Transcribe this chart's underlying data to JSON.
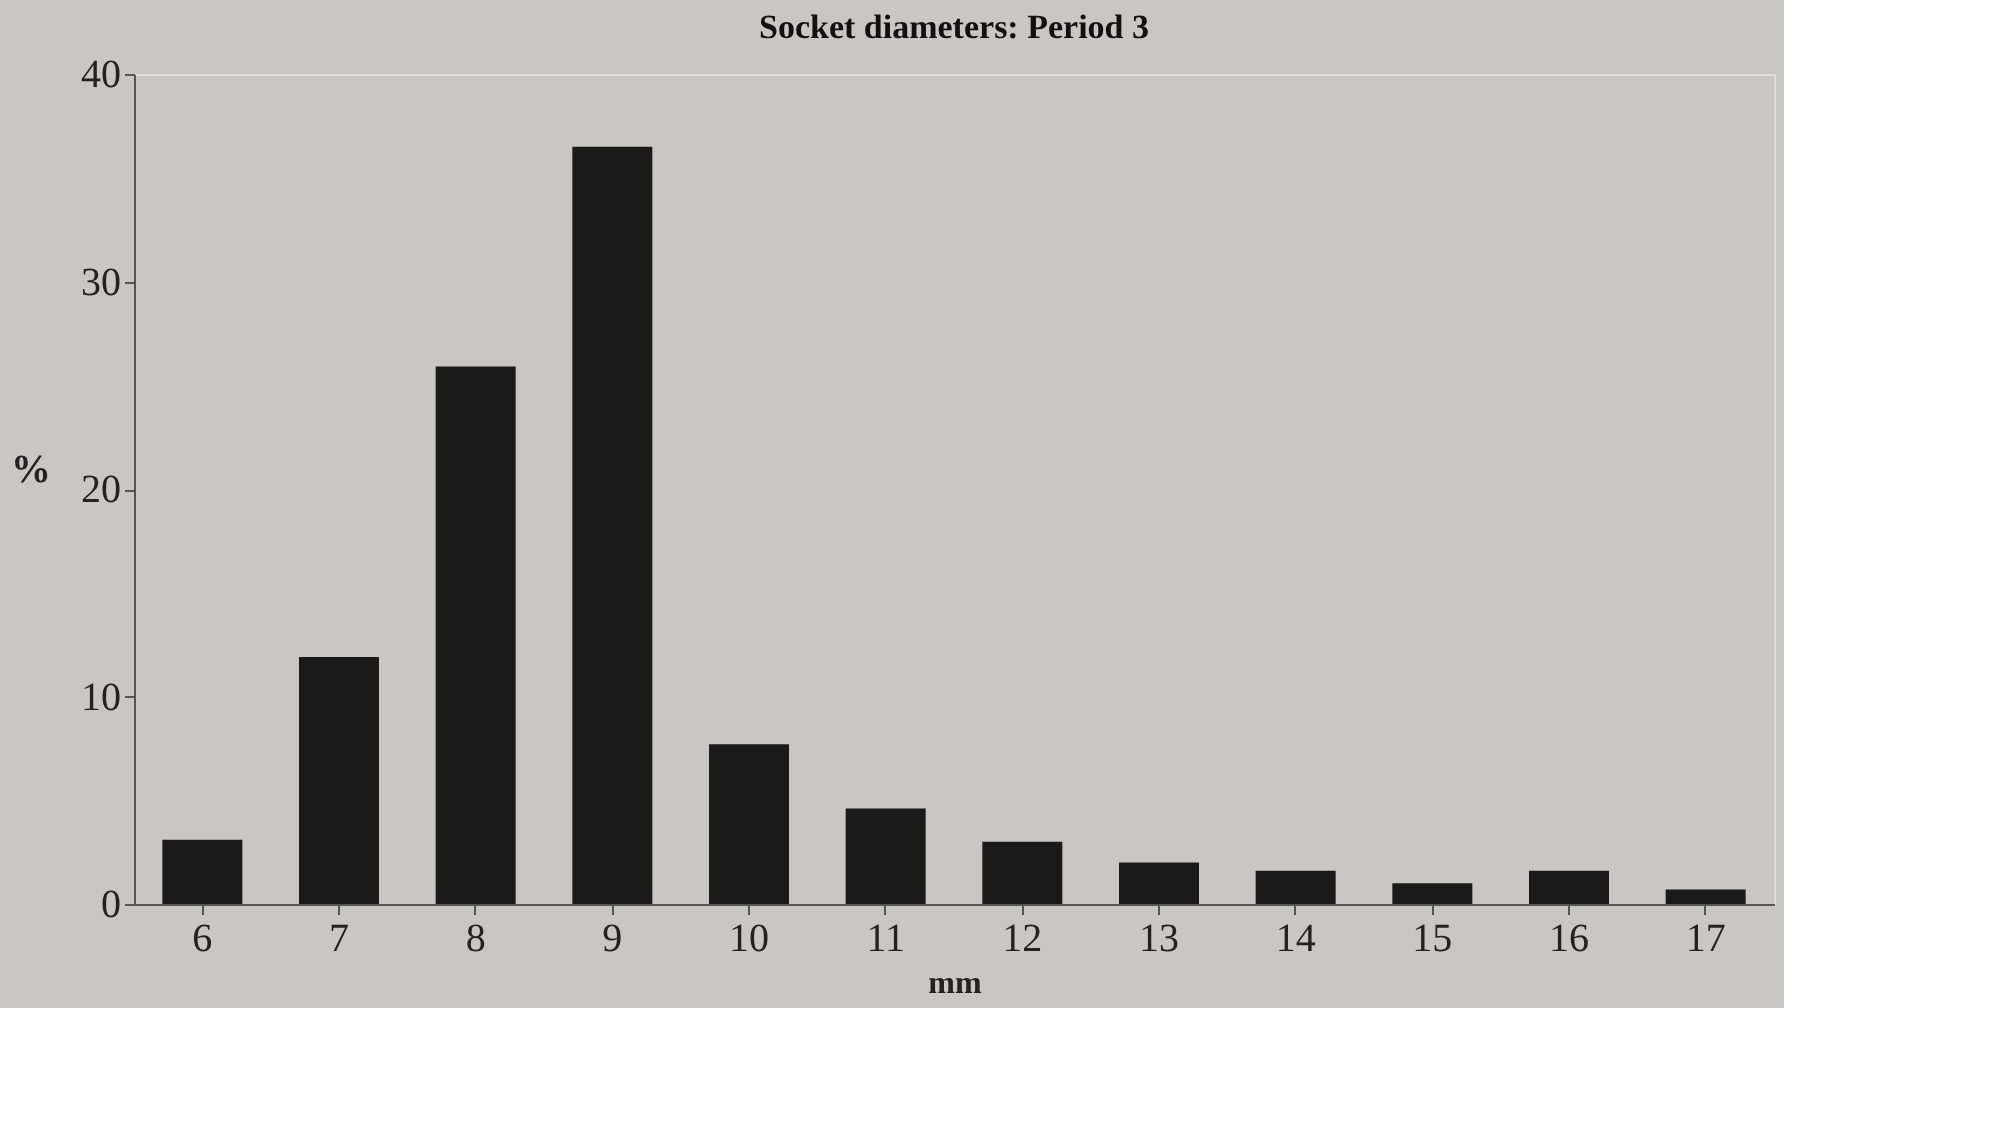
{
  "chart_data": {
    "type": "bar",
    "title": "Socket diameters:  Period 3",
    "xlabel": "mm",
    "ylabel": "%",
    "categories": [
      "6",
      "7",
      "8",
      "9",
      "10",
      "11",
      "12",
      "13",
      "14",
      "15",
      "16",
      "17"
    ],
    "values": [
      3.1,
      11.9,
      25.9,
      36.5,
      7.7,
      4.6,
      3.0,
      2.0,
      1.6,
      1.0,
      1.6,
      0.7
    ],
    "color": "#1a1a1a",
    "ylim": [
      0,
      40
    ],
    "yticks": [
      0,
      10,
      20,
      30,
      40
    ],
    "grid": false
  }
}
